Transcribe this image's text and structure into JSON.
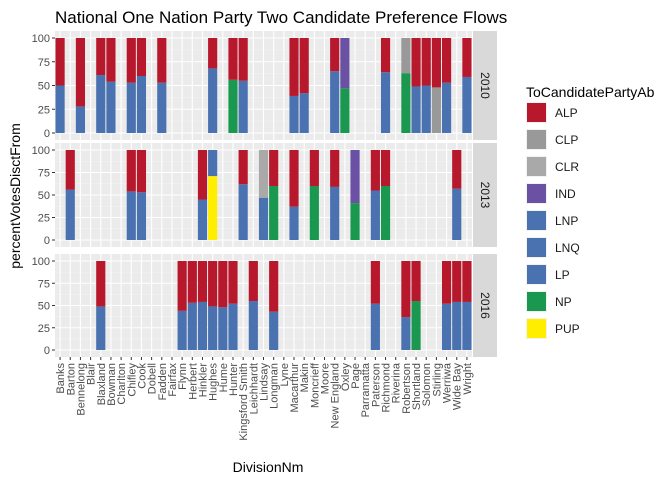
{
  "chart_data": {
    "type": "bar",
    "stacked": true,
    "title": "National One Nation Party Two Candidate Preference Flows",
    "xlabel": "DivisionNm",
    "ylabel": "percentVotesDisctFrom",
    "ylim": [
      0,
      100
    ],
    "yticks": [
      "0",
      "25",
      "50",
      "75",
      "100"
    ],
    "grid": true,
    "legend": {
      "title": "ToCandidatePartyAb",
      "position": "right",
      "entries": [
        "ALP",
        "CLP",
        "CLR",
        "IND",
        "LNP",
        "LNQ",
        "LP",
        "NP",
        "PUP"
      ]
    },
    "colors": {
      "ALP": "#b8182b",
      "CLP": "#999999",
      "CLR": "#a9a9a9",
      "IND": "#6a51a3",
      "LNP": "#4a72b0",
      "LNQ": "#4a72b0",
      "LP": "#4a72b0",
      "NP": "#1a9850",
      "PUP": "#ffee00"
    },
    "categories": [
      "Banks",
      "Barton",
      "Bennelong",
      "Blair",
      "Blaxland",
      "Bowman",
      "Charlton",
      "Chifley",
      "Cook",
      "Dobell",
      "Fadden",
      "Fairfax",
      "Flynn",
      "Herbert",
      "Hinkler",
      "Hughes",
      "Hume",
      "Hunter",
      "Kingsford Smith",
      "Leichhardt",
      "Lindsay",
      "Longman",
      "Lyne",
      "Macarthur",
      "Makin",
      "Moncrieff",
      "Moore",
      "New England",
      "Oxley",
      "Page",
      "Parramatta",
      "Paterson",
      "Richmond",
      "Riverina",
      "Robertson",
      "Shortland",
      "Solomon",
      "Stirling",
      "Werriwa",
      "Wide Bay",
      "Wright"
    ],
    "panels": [
      {
        "label": "2010",
        "bars": [
          {
            "category": "Banks",
            "segments": [
              {
                "party": "LNP",
                "value": 50
              },
              {
                "party": "ALP",
                "value": 50
              }
            ]
          },
          {
            "category": "Bennelong",
            "segments": [
              {
                "party": "LNP",
                "value": 28
              },
              {
                "party": "ALP",
                "value": 72
              }
            ]
          },
          {
            "category": "Blaxland",
            "segments": [
              {
                "party": "LNP",
                "value": 61
              },
              {
                "party": "ALP",
                "value": 39
              }
            ]
          },
          {
            "category": "Bowman",
            "segments": [
              {
                "party": "LNP",
                "value": 54
              },
              {
                "party": "ALP",
                "value": 46
              }
            ]
          },
          {
            "category": "Chifley",
            "segments": [
              {
                "party": "LNP",
                "value": 53
              },
              {
                "party": "ALP",
                "value": 47
              }
            ]
          },
          {
            "category": "Cook",
            "segments": [
              {
                "party": "LNP",
                "value": 60
              },
              {
                "party": "ALP",
                "value": 40
              }
            ]
          },
          {
            "category": "Fadden",
            "segments": [
              {
                "party": "LNP",
                "value": 53
              },
              {
                "party": "ALP",
                "value": 47
              }
            ]
          },
          {
            "category": "Hughes",
            "segments": [
              {
                "party": "LNP",
                "value": 68
              },
              {
                "party": "ALP",
                "value": 32
              }
            ]
          },
          {
            "category": "Hunter",
            "segments": [
              {
                "party": "NP",
                "value": 56
              },
              {
                "party": "ALP",
                "value": 44
              }
            ]
          },
          {
            "category": "Kingsford Smith",
            "segments": [
              {
                "party": "LNP",
                "value": 55
              },
              {
                "party": "ALP",
                "value": 45
              }
            ]
          },
          {
            "category": "Macarthur",
            "segments": [
              {
                "party": "LNP",
                "value": 39
              },
              {
                "party": "ALP",
                "value": 61
              }
            ]
          },
          {
            "category": "Makin",
            "segments": [
              {
                "party": "LNP",
                "value": 42
              },
              {
                "party": "ALP",
                "value": 58
              }
            ]
          },
          {
            "category": "New England",
            "segments": [
              {
                "party": "LNP",
                "value": 65
              },
              {
                "party": "ALP",
                "value": 35
              }
            ]
          },
          {
            "category": "Oxley",
            "segments": [
              {
                "party": "NP",
                "value": 47
              },
              {
                "party": "IND",
                "value": 53
              }
            ]
          },
          {
            "category": "Richmond",
            "segments": [
              {
                "party": "LNP",
                "value": 64
              },
              {
                "party": "ALP",
                "value": 36
              }
            ]
          },
          {
            "category": "Robertson",
            "segments": [
              {
                "party": "NP",
                "value": 63
              },
              {
                "party": "CLP",
                "value": 37
              }
            ]
          },
          {
            "category": "Shortland",
            "segments": [
              {
                "party": "LNP",
                "value": 49
              },
              {
                "party": "ALP",
                "value": 51
              }
            ]
          },
          {
            "category": "Solomon",
            "segments": [
              {
                "party": "LNP",
                "value": 50
              },
              {
                "party": "ALP",
                "value": 50
              }
            ]
          },
          {
            "category": "Stirling",
            "segments": [
              {
                "party": "CLP",
                "value": 48
              },
              {
                "party": "ALP",
                "value": 52
              }
            ]
          },
          {
            "category": "Werriwa",
            "segments": [
              {
                "party": "LNP",
                "value": 53
              },
              {
                "party": "ALP",
                "value": 47
              }
            ]
          },
          {
            "category": "Wright",
            "segments": [
              {
                "party": "LNP",
                "value": 59
              },
              {
                "party": "ALP",
                "value": 41
              }
            ]
          }
        ]
      },
      {
        "label": "2013",
        "bars": [
          {
            "category": "Barton",
            "segments": [
              {
                "party": "LNP",
                "value": 56
              },
              {
                "party": "ALP",
                "value": 44
              }
            ]
          },
          {
            "category": "Chifley",
            "segments": [
              {
                "party": "LNP",
                "value": 54
              },
              {
                "party": "ALP",
                "value": 46
              }
            ]
          },
          {
            "category": "Cook",
            "segments": [
              {
                "party": "LNP",
                "value": 53
              },
              {
                "party": "ALP",
                "value": 47
              }
            ]
          },
          {
            "category": "Hinkler",
            "segments": [
              {
                "party": "LNP",
                "value": 45
              },
              {
                "party": "ALP",
                "value": 55
              }
            ]
          },
          {
            "category": "Hughes",
            "segments": [
              {
                "party": "PUP",
                "value": 71
              },
              {
                "party": "LNP",
                "value": 29
              }
            ]
          },
          {
            "category": "Kingsford Smith",
            "segments": [
              {
                "party": "LNP",
                "value": 62
              },
              {
                "party": "ALP",
                "value": 38
              }
            ]
          },
          {
            "category": "Lindsay",
            "segments": [
              {
                "party": "LNP",
                "value": 47
              },
              {
                "party": "CLR",
                "value": 53
              }
            ]
          },
          {
            "category": "Longman",
            "segments": [
              {
                "party": "NP",
                "value": 60
              },
              {
                "party": "ALP",
                "value": 40
              }
            ]
          },
          {
            "category": "Macarthur",
            "segments": [
              {
                "party": "LNP",
                "value": 37
              },
              {
                "party": "ALP",
                "value": 63
              }
            ]
          },
          {
            "category": "Moncrieff",
            "segments": [
              {
                "party": "NP",
                "value": 60
              },
              {
                "party": "ALP",
                "value": 40
              }
            ]
          },
          {
            "category": "New England",
            "segments": [
              {
                "party": "LNP",
                "value": 59
              },
              {
                "party": "ALP",
                "value": 41
              }
            ]
          },
          {
            "category": "Page",
            "segments": [
              {
                "party": "NP",
                "value": 41
              },
              {
                "party": "IND",
                "value": 59
              }
            ]
          },
          {
            "category": "Paterson",
            "segments": [
              {
                "party": "LNP",
                "value": 55
              },
              {
                "party": "ALP",
                "value": 45
              }
            ]
          },
          {
            "category": "Richmond",
            "segments": [
              {
                "party": "NP",
                "value": 60
              },
              {
                "party": "ALP",
                "value": 40
              }
            ]
          },
          {
            "category": "Wide Bay",
            "segments": [
              {
                "party": "LNP",
                "value": 57
              },
              {
                "party": "ALP",
                "value": 43
              }
            ]
          }
        ]
      },
      {
        "label": "2016",
        "bars": [
          {
            "category": "Blaxland",
            "segments": [
              {
                "party": "LNP",
                "value": 49
              },
              {
                "party": "ALP",
                "value": 51
              }
            ]
          },
          {
            "category": "Flynn",
            "segments": [
              {
                "party": "LNP",
                "value": 44
              },
              {
                "party": "ALP",
                "value": 56
              }
            ]
          },
          {
            "category": "Herbert",
            "segments": [
              {
                "party": "LNP",
                "value": 53
              },
              {
                "party": "ALP",
                "value": 47
              }
            ]
          },
          {
            "category": "Hinkler",
            "segments": [
              {
                "party": "LNP",
                "value": 54
              },
              {
                "party": "ALP",
                "value": 46
              }
            ]
          },
          {
            "category": "Hughes",
            "segments": [
              {
                "party": "LNP",
                "value": 49
              },
              {
                "party": "ALP",
                "value": 51
              }
            ]
          },
          {
            "category": "Hume",
            "segments": [
              {
                "party": "LNP",
                "value": 48
              },
              {
                "party": "ALP",
                "value": 52
              }
            ]
          },
          {
            "category": "Hunter",
            "segments": [
              {
                "party": "LNP",
                "value": 52
              },
              {
                "party": "ALP",
                "value": 48
              }
            ]
          },
          {
            "category": "Leichhardt",
            "segments": [
              {
                "party": "LNP",
                "value": 55
              },
              {
                "party": "ALP",
                "value": 45
              }
            ]
          },
          {
            "category": "Longman",
            "segments": [
              {
                "party": "LNP",
                "value": 43
              },
              {
                "party": "ALP",
                "value": 57
              }
            ]
          },
          {
            "category": "Paterson",
            "segments": [
              {
                "party": "LNP",
                "value": 52
              },
              {
                "party": "ALP",
                "value": 48
              }
            ]
          },
          {
            "category": "Robertson",
            "segments": [
              {
                "party": "LNP",
                "value": 37
              },
              {
                "party": "ALP",
                "value": 63
              }
            ]
          },
          {
            "category": "Shortland",
            "segments": [
              {
                "party": "NP",
                "value": 55
              },
              {
                "party": "ALP",
                "value": 45
              }
            ]
          },
          {
            "category": "Werriwa",
            "segments": [
              {
                "party": "LNP",
                "value": 52
              },
              {
                "party": "ALP",
                "value": 48
              }
            ]
          },
          {
            "category": "Wide Bay",
            "segments": [
              {
                "party": "LNP",
                "value": 54
              },
              {
                "party": "ALP",
                "value": 46
              }
            ]
          },
          {
            "category": "Wright",
            "segments": [
              {
                "party": "LNP",
                "value": 54
              },
              {
                "party": "ALP",
                "value": 46
              }
            ]
          }
        ]
      }
    ]
  }
}
